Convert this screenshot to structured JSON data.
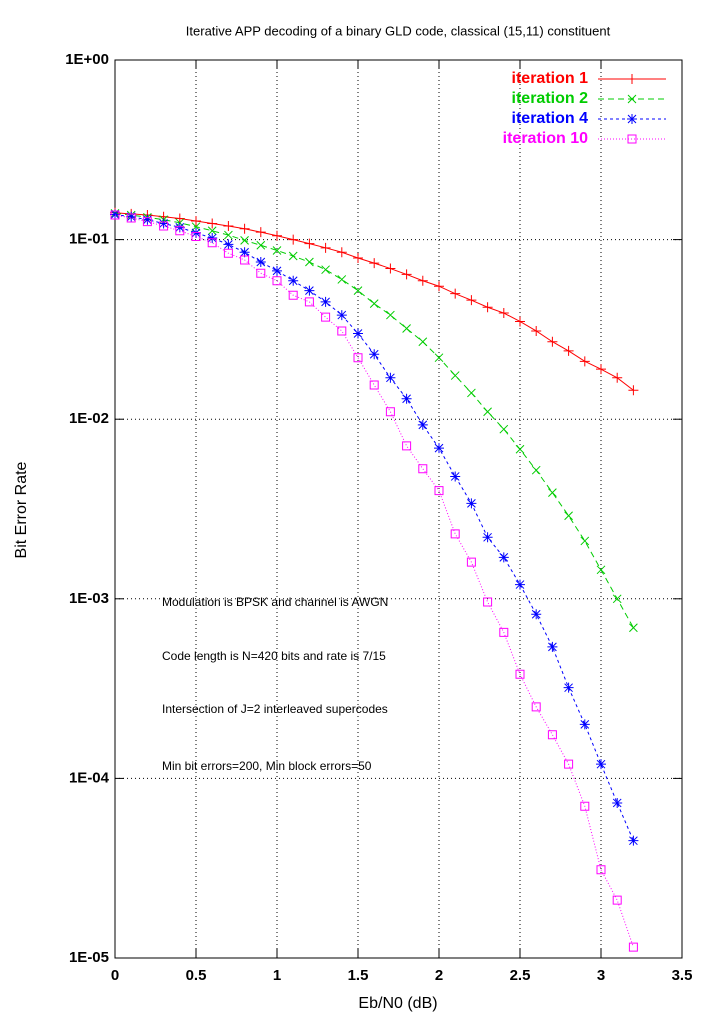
{
  "chart_data": {
    "type": "line",
    "title": "Iterative APP decoding of a binary GLD code, classical (15,11) constituent",
    "x_label": "Eb/N0 (dB)",
    "y_label": "Bit Error Rate",
    "annotations": [
      "Modulation is BPSK and channel is AWGN",
      "Code length is N=420 bits and rate is 7/15",
      "Intersection of J=2 interleaved supercodes",
      "Min bit errors=200, Min block errors=50"
    ],
    "x": [
      0,
      0.1,
      0.2,
      0.3,
      0.4,
      0.5,
      0.6,
      0.7,
      0.8,
      0.9,
      1.0,
      1.1,
      1.2,
      1.3,
      1.4,
      1.5,
      1.6,
      1.7,
      1.8,
      1.9,
      2.0,
      2.1,
      2.2,
      2.3,
      2.4,
      2.5,
      2.6,
      2.7,
      2.8,
      2.9,
      3.0,
      3.1,
      3.2
    ],
    "series": [
      {
        "name": "iteration 1",
        "color": "#ff0000",
        "marker": "plus",
        "line_style": "solid",
        "values": [
          0.141,
          0.139,
          0.137,
          0.134,
          0.131,
          0.127,
          0.123,
          0.119,
          0.115,
          0.11,
          0.105,
          0.1,
          0.095,
          0.09,
          0.085,
          0.079,
          0.074,
          0.069,
          0.064,
          0.059,
          0.055,
          0.05,
          0.046,
          0.042,
          0.039,
          0.035,
          0.031,
          0.027,
          0.024,
          0.021,
          0.019,
          0.017,
          0.0145
        ]
      },
      {
        "name": "iteration 2",
        "color": "#00cc00",
        "marker": "cross",
        "line_style": "dashed",
        "values": [
          0.14,
          0.137,
          0.133,
          0.129,
          0.124,
          0.118,
          0.112,
          0.106,
          0.099,
          0.093,
          0.087,
          0.081,
          0.075,
          0.068,
          0.06,
          0.052,
          0.044,
          0.038,
          0.032,
          0.027,
          0.022,
          0.0175,
          0.014,
          0.011,
          0.0088,
          0.0068,
          0.0052,
          0.0039,
          0.0029,
          0.0021,
          0.00145,
          0.001,
          0.00069
        ]
      },
      {
        "name": "iteration 4",
        "color": "#0000ff",
        "marker": "star",
        "line_style": "short-dashed",
        "values": [
          0.138,
          0.134,
          0.129,
          0.123,
          0.117,
          0.109,
          0.102,
          0.094,
          0.085,
          0.075,
          0.067,
          0.059,
          0.052,
          0.045,
          0.038,
          0.03,
          0.023,
          0.017,
          0.013,
          0.0093,
          0.0069,
          0.0048,
          0.0034,
          0.0022,
          0.0017,
          0.0012,
          0.00082,
          0.00054,
          0.00032,
          0.0002,
          0.00012,
          7.3e-05,
          4.5e-05
        ]
      },
      {
        "name": "iteration 10",
        "color": "#ff00ff",
        "marker": "square",
        "line_style": "dotted",
        "values": [
          0.137,
          0.132,
          0.126,
          0.119,
          0.112,
          0.104,
          0.096,
          0.084,
          0.077,
          0.065,
          0.059,
          0.049,
          0.045,
          0.037,
          0.031,
          0.022,
          0.0155,
          0.011,
          0.0071,
          0.0053,
          0.004,
          0.0023,
          0.0016,
          0.00096,
          0.00065,
          0.00038,
          0.00025,
          0.000175,
          0.00012,
          7e-05,
          3.1e-05,
          2.1e-05,
          1.15e-05
        ]
      }
    ],
    "xlim": [
      0,
      3.5
    ],
    "xticks": [
      0,
      0.5,
      1,
      1.5,
      2,
      2.5,
      3,
      3.5
    ],
    "ylim": [
      1e-05,
      1
    ],
    "yticks": [
      {
        "value": 1e-05,
        "label": "1E-05"
      },
      {
        "value": 0.0001,
        "label": "1E-04"
      },
      {
        "value": 0.001,
        "label": "1E-03"
      },
      {
        "value": 0.01,
        "label": "1E-02"
      },
      {
        "value": 0.1,
        "label": "1E-01"
      },
      {
        "value": 1,
        "label": "1E+00"
      }
    ],
    "y_log": true,
    "grid": true,
    "legend": "top-right"
  }
}
